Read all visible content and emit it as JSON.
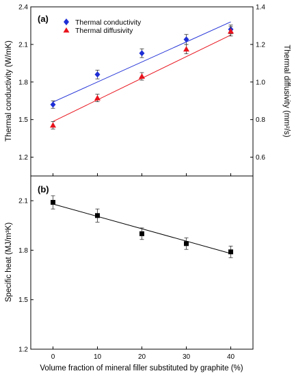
{
  "chart_data": [
    {
      "panel": "(a)",
      "type": "scatter",
      "xlabel": "",
      "x": [
        0,
        10,
        20,
        30,
        40
      ],
      "xlim": [
        -5,
        45
      ],
      "xticks": [
        0,
        10,
        20,
        30,
        40
      ],
      "ylabel_left": "Thermal conductivity (W/mK)",
      "ylim_left": [
        1.05,
        2.4
      ],
      "yticks_left": [
        "1.2",
        "1.5",
        "1.8",
        "2.1",
        "2.4"
      ],
      "ylabel_right": "Thermal diffusivity (mm²/s)",
      "ylim_right": [
        0.5,
        1.4
      ],
      "yticks_right": [
        "0.6",
        "0.8",
        "1.0",
        "1.2",
        "1.4"
      ],
      "legend_position": "top-left",
      "series": [
        {
          "name": "Thermal conductivity",
          "axis": "left",
          "marker": "diamond",
          "color": "#1f2fd6",
          "values": [
            1.62,
            1.86,
            2.03,
            2.14,
            2.22
          ],
          "errors": [
            0.03,
            0.035,
            0.035,
            0.04,
            0.035
          ],
          "fit": [
            1.64,
            2.28
          ]
        },
        {
          "name": "Thermal diffusivity",
          "axis": "right",
          "marker": "triangle",
          "color": "#e8121b",
          "values": [
            0.77,
            0.915,
            1.03,
            1.175,
            1.27
          ],
          "errors": [
            0.02,
            0.02,
            0.02,
            0.025,
            0.025
          ],
          "fit": [
            0.79,
            1.25
          ]
        }
      ]
    },
    {
      "panel": "(b)",
      "type": "scatter",
      "xlabel": "Volume fraction of mineral filler substituted by graphite (%)",
      "x": [
        0,
        10,
        20,
        30,
        40
      ],
      "xlim": [
        -5,
        45
      ],
      "xticks": [
        0,
        10,
        20,
        30,
        40
      ],
      "ylabel": "Specific heat (MJ/m³K)",
      "ylim": [
        1.2,
        2.25
      ],
      "yticks": [
        "1.2",
        "1.5",
        "1.8",
        "2.1"
      ],
      "series": [
        {
          "name": "",
          "marker": "square",
          "color": "#000000",
          "values": [
            2.09,
            2.01,
            1.9,
            1.84,
            1.79
          ],
          "errors": [
            0.04,
            0.04,
            0.035,
            0.035,
            0.035
          ],
          "fit": [
            2.08,
            1.78
          ]
        }
      ]
    }
  ]
}
